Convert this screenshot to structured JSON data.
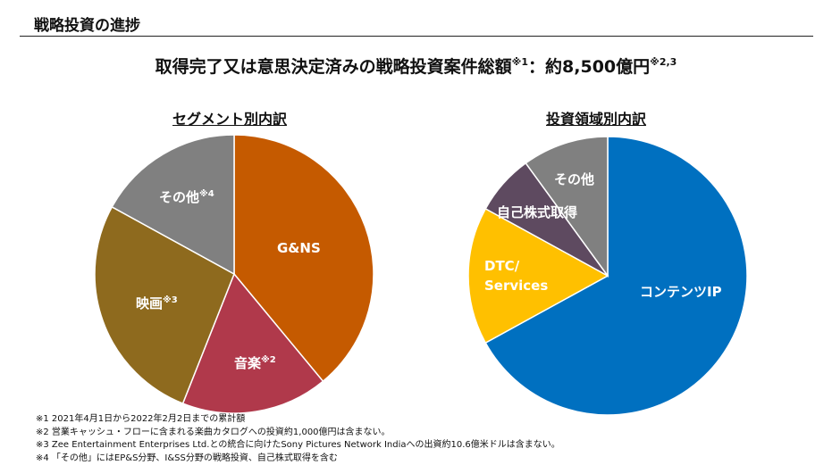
{
  "section_title": "戦略投資の進捗",
  "headline": {
    "text": "取得完了又は意思決定済みの戦略投資案件総額",
    "sup1": "※1",
    "colon": "：",
    "amount": "約8,500億円",
    "sup2": "※2,3"
  },
  "chart_data": [
    {
      "type": "pie",
      "title": "セグメント別内訳",
      "slices": [
        {
          "label": "G&NS",
          "sup": "",
          "value": 39,
          "color": "#C55A00"
        },
        {
          "label": "音楽",
          "sup": "※2",
          "value": 17,
          "color": "#B0394B"
        },
        {
          "label": "映画",
          "sup": "※3",
          "value": 27,
          "color": "#8E6A1E"
        },
        {
          "label": "その他",
          "sup": "※4",
          "value": 17,
          "color": "#808080"
        }
      ]
    },
    {
      "type": "pie",
      "title": "投資領域別内訳",
      "slices": [
        {
          "label": "コンテンツIP",
          "sup": "",
          "value": 67,
          "color": "#0070C0"
        },
        {
          "label": "DTC/ Services",
          "sup": "",
          "value": 16,
          "color": "#FFC000"
        },
        {
          "label": "自己株式取得",
          "sup": "",
          "value": 7,
          "color": "#5E4A60"
        },
        {
          "label": "その他",
          "sup": "",
          "value": 10,
          "color": "#808080"
        }
      ]
    }
  ],
  "footnotes": [
    "※1 2021年4月1日から2022年2月2日までの累計額",
    "※2 営業キャッシュ・フローに含まれる楽曲カタログへの投資約1,000億円は含まない。",
    "※3 Zee Entertainment Enterprises Ltd.との統合に向けたSony Pictures Network Indiaへの出資約10.6億米ドルは含まない。",
    "※4 「その他」にはEP&S分野、I&SS分野の戦略投資、自己株式取得を含む"
  ]
}
